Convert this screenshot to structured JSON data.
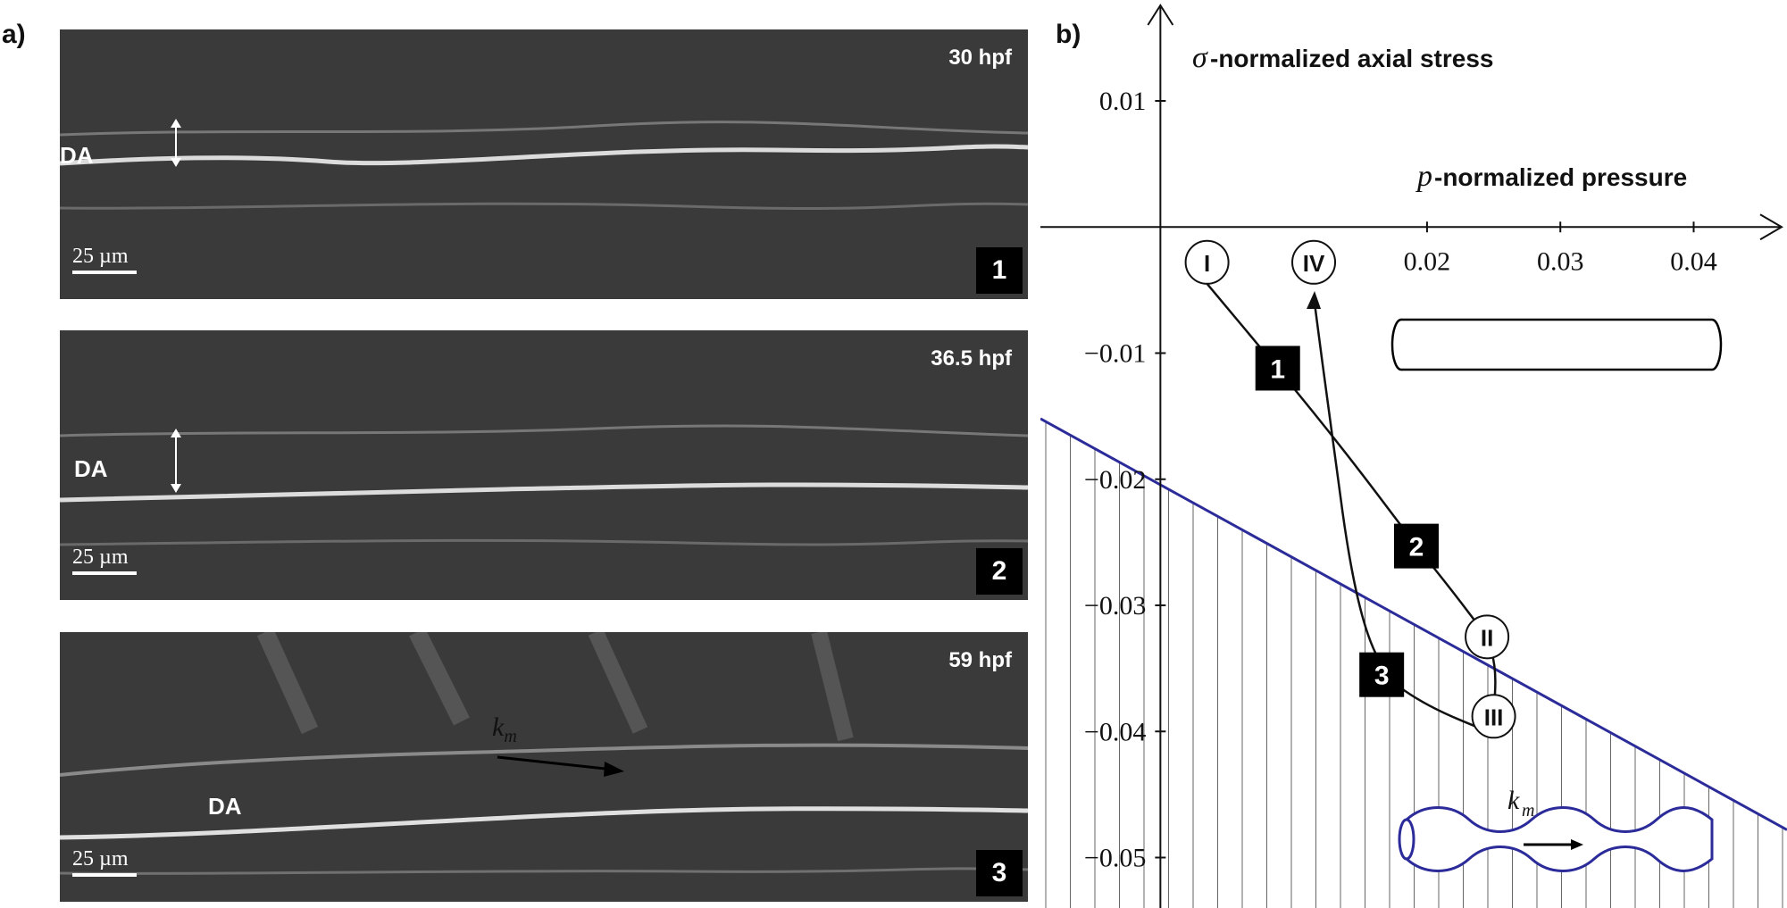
{
  "figure": {
    "panel_a_label": "a)",
    "panel_b_label": "b)"
  },
  "micrographs": [
    {
      "time": "30 hpf",
      "vessel_label": "DA",
      "scale": "25 µm",
      "step": "1"
    },
    {
      "time": "36.5 hpf",
      "vessel_label": "DA",
      "scale": "25 µm",
      "step": "2"
    },
    {
      "time": "59 hpf",
      "vessel_label": "DA",
      "scale": "25 µm",
      "step": "3",
      "wavevector_label": "k",
      "wavevector_sub": "m"
    }
  ],
  "chart_data": {
    "type": "line",
    "y_axis": {
      "symbol": "σ",
      "label": "-normalized axial stress",
      "ticks": [
        0.01,
        -0.01,
        -0.02,
        -0.03,
        -0.04,
        -0.05
      ],
      "tick_labels": [
        "0.01",
        "−0.01",
        "−0.02",
        "−0.03",
        "−0.04",
        "−0.05"
      ]
    },
    "x_axis": {
      "symbol": "p",
      "label": "-normalized pressure",
      "ticks": [
        0.02,
        0.03,
        0.04
      ],
      "tick_labels": [
        "0.02",
        "0.03",
        "0.04"
      ]
    },
    "xlim": [
      -0.009,
      0.047
    ],
    "ylim": [
      -0.054,
      0.018
    ],
    "states": [
      {
        "label": "I",
        "x": 0.0035,
        "y": -0.0028
      },
      {
        "label": "IV",
        "x": 0.0115,
        "y": -0.0028
      },
      {
        "label": "II",
        "x": 0.0245,
        "y": -0.0325
      },
      {
        "label": "III",
        "x": 0.025,
        "y": -0.0388
      }
    ],
    "steps": [
      {
        "label": "1",
        "x": 0.0088,
        "y": -0.0112
      },
      {
        "label": "2",
        "x": 0.0192,
        "y": -0.0253
      },
      {
        "label": "3",
        "x": 0.0166,
        "y": -0.0355
      }
    ],
    "path_1_2": [
      [
        0.0035,
        -0.0045
      ],
      [
        0.0088,
        -0.0112
      ],
      [
        0.014,
        -0.018
      ],
      [
        0.0192,
        -0.0253
      ],
      [
        0.022,
        -0.029
      ],
      [
        0.0245,
        -0.0325
      ]
    ],
    "path_2_3": [
      [
        0.0245,
        -0.0325
      ],
      [
        0.0252,
        -0.035
      ],
      [
        0.025,
        -0.0388
      ]
    ],
    "path_3": [
      [
        0.025,
        -0.0402
      ],
      [
        0.02,
        -0.038
      ],
      [
        0.0166,
        -0.0355
      ],
      [
        0.0145,
        -0.029
      ],
      [
        0.0128,
        -0.016
      ],
      [
        0.0115,
        -0.0055
      ]
    ],
    "stability_boundary": [
      [
        -0.009,
        -0.0152
      ],
      [
        0.047,
        -0.0478
      ]
    ],
    "stability_color": "#2b2b9a"
  },
  "insets": {
    "wavy_label": "k",
    "wavy_sub": "m"
  }
}
